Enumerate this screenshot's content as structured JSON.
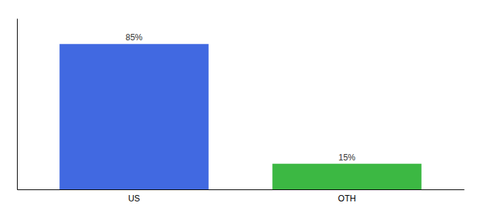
{
  "chart_data": {
    "type": "bar",
    "categories": [
      "US",
      "OTH"
    ],
    "values": [
      85,
      15
    ],
    "colors": [
      "#4169e1",
      "#3cb843"
    ],
    "ylim": [
      0,
      100
    ],
    "data_labels": true,
    "value_labels": [
      "85%",
      "15%"
    ],
    "tick_labels": "x"
  }
}
